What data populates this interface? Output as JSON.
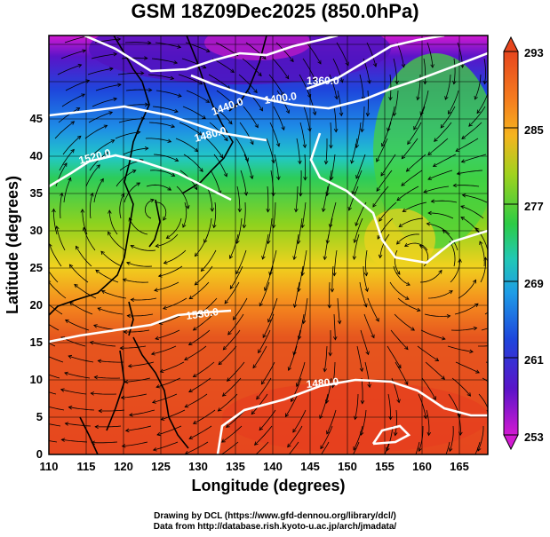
{
  "title": "GSM 18Z09Dec2025 (850.0hPa)",
  "x_axis": {
    "label": "Longitude (degrees)",
    "ticks": [
      "110",
      "115",
      "120",
      "125",
      "130",
      "135",
      "140",
      "145",
      "150",
      "155",
      "160",
      "165"
    ]
  },
  "y_axis": {
    "label": "Latitude  (degrees)",
    "ticks": [
      "0",
      "5",
      "10",
      "15",
      "20",
      "25",
      "30",
      "35",
      "40",
      "45"
    ]
  },
  "colorbar": {
    "ticks": [
      "253",
      "261",
      "269",
      "277",
      "285",
      "293"
    ],
    "colors": [
      "#d21ad2",
      "#3a14c8",
      "#1e5ae6",
      "#22b4dc",
      "#2ccc5a",
      "#8ed21e",
      "#f0d21e",
      "#f58a1e",
      "#e6461e"
    ]
  },
  "contour_labels": [
    {
      "text": "1360.0"
    },
    {
      "text": "1400.0"
    },
    {
      "text": "1440.0"
    },
    {
      "text": "1480.0"
    },
    {
      "text": "1520.0"
    },
    {
      "text": "1530.0"
    },
    {
      "text": "1480.0"
    }
  ],
  "credits": {
    "line1": "Drawing by DCL (https://www.gfd-dennou.org/library/dcl/)",
    "line2": "Data from http://database.rish.kyoto-u.ac.jp/arch/jmadata/"
  }
}
